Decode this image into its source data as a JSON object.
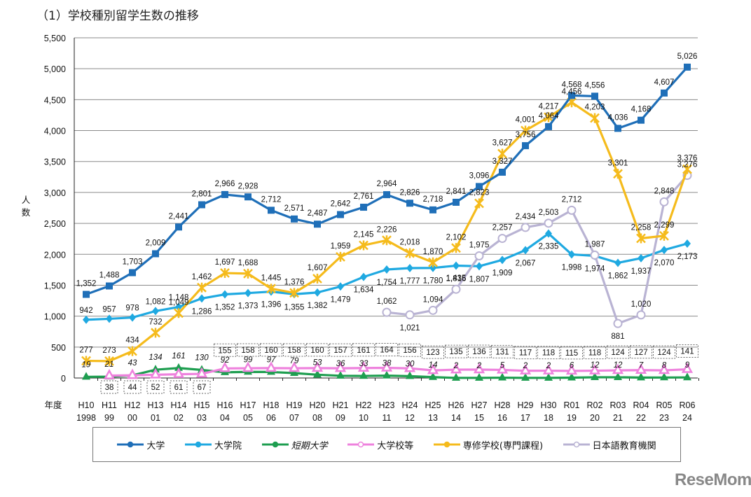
{
  "title": "（1）学校種別留学生数の推移",
  "watermark": "ReseMom",
  "chart_data": {
    "type": "line",
    "title": "（1）学校種別留学生数の推移",
    "xlabel": "年度",
    "ylabel": "人数",
    "ylim": [
      0,
      5500
    ],
    "yticks": [
      0,
      500,
      1000,
      1500,
      2000,
      2500,
      3000,
      3500,
      4000,
      4500,
      5000,
      5500
    ],
    "ytick_labels": [
      "0",
      "500",
      "1,000",
      "1,500",
      "2,000",
      "2,500",
      "3,000",
      "3,500",
      "4,000",
      "4,500",
      "5,000",
      "5,500"
    ],
    "grid": true,
    "legend_position": "bottom",
    "categories": [
      {
        "era": "H10",
        "year": "1998"
      },
      {
        "era": "H11",
        "year": "99"
      },
      {
        "era": "H12",
        "year": "00"
      },
      {
        "era": "H13",
        "year": "01"
      },
      {
        "era": "H14",
        "year": "02"
      },
      {
        "era": "H15",
        "year": "03"
      },
      {
        "era": "H16",
        "year": "04"
      },
      {
        "era": "H17",
        "year": "05"
      },
      {
        "era": "H18",
        "year": "06"
      },
      {
        "era": "H19",
        "year": "07"
      },
      {
        "era": "H20",
        "year": "08"
      },
      {
        "era": "H21",
        "year": "09"
      },
      {
        "era": "H22",
        "year": "10"
      },
      {
        "era": "H23",
        "year": "11"
      },
      {
        "era": "H24",
        "year": "12"
      },
      {
        "era": "H25",
        "year": "13"
      },
      {
        "era": "H26",
        "year": "14"
      },
      {
        "era": "H27",
        "year": "15"
      },
      {
        "era": "H28",
        "year": "16"
      },
      {
        "era": "H29",
        "year": "17"
      },
      {
        "era": "H30",
        "year": "18"
      },
      {
        "era": "R01",
        "year": "19"
      },
      {
        "era": "R02",
        "year": "20"
      },
      {
        "era": "R03",
        "year": "21"
      },
      {
        "era": "R04",
        "year": "22"
      },
      {
        "era": "R05",
        "year": "23"
      },
      {
        "era": "R06",
        "year": "24"
      }
    ],
    "series": [
      {
        "name": "大学",
        "color": "#1f6fb8",
        "marker": "square",
        "values": [
          1352,
          1488,
          1703,
          2009,
          2441,
          2801,
          2966,
          2928,
          2712,
          2571,
          2487,
          2642,
          2761,
          2964,
          2826,
          2718,
          2841,
          3096,
          3327,
          3756,
          4064,
          4568,
          4556,
          4036,
          4168,
          4607,
          5026
        ]
      },
      {
        "name": "大学院",
        "color": "#1fa9e1",
        "marker": "diamond",
        "values": [
          942,
          957,
          978,
          1082,
          1148,
          1286,
          1352,
          1373,
          1396,
          1355,
          1382,
          1479,
          1634,
          1754,
          1777,
          1780,
          1816,
          1807,
          1909,
          2067,
          2335,
          1998,
          1974,
          1862,
          1937,
          2070,
          2173
        ]
      },
      {
        "name": "短期大学",
        "color": "#1e9e50",
        "marker": "triangle",
        "italic": true,
        "values": [
          19,
          21,
          43,
          134,
          161,
          130,
          92,
          99,
          97,
          79,
          53,
          36,
          33,
          38,
          30,
          14,
          2,
          2,
          5,
          2,
          2,
          6,
          12,
          12,
          7,
          8,
          9
        ]
      },
      {
        "name": "大学校等",
        "color": "#ee82dd",
        "marker": "triangle-open",
        "boxed": true,
        "values": [
          null,
          38,
          44,
          52,
          61,
          67,
          155,
          158,
          160,
          158,
          160,
          157,
          161,
          164,
          156,
          123,
          135,
          136,
          131,
          117,
          118,
          115,
          118,
          124,
          127,
          124,
          141
        ]
      },
      {
        "name": "専修学校(専門課程)",
        "color": "#f5bb1c",
        "marker": "star",
        "values": [
          277,
          273,
          434,
          732,
          1049,
          1462,
          1697,
          1688,
          1445,
          1376,
          1607,
          1959,
          2145,
          2226,
          2018,
          1870,
          2102,
          2823,
          3627,
          4001,
          4217,
          4456,
          4203,
          3301,
          2258,
          2299,
          3376
        ]
      },
      {
        "name": "日本語教育機関",
        "color": "#b9b3d3",
        "marker": "circle-open",
        "values": [
          null,
          null,
          null,
          null,
          null,
          null,
          null,
          null,
          null,
          null,
          null,
          null,
          null,
          1062,
          1021,
          1094,
          1435,
          1975,
          2257,
          2434,
          2503,
          2712,
          1987,
          881,
          1020,
          2848,
          3276
        ]
      }
    ]
  }
}
